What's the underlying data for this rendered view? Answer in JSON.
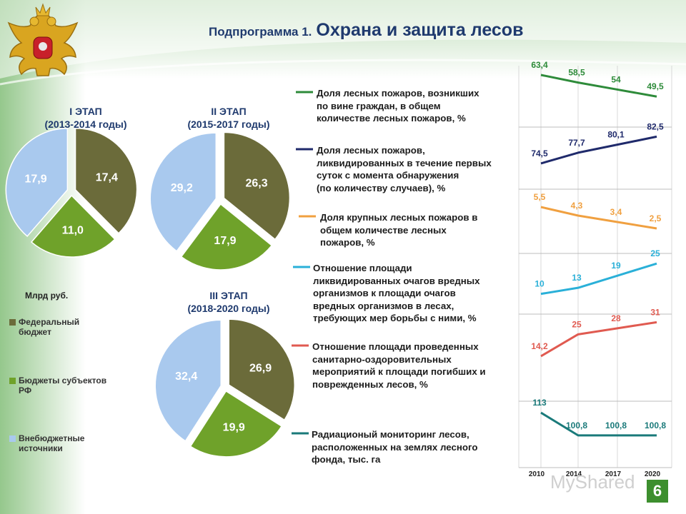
{
  "header": {
    "title_prefix": "Подпрограмма 1.",
    "title_main": "Охрана и защита лесов",
    "emblem_icon": "coat-of-arms-icon"
  },
  "colors": {
    "federal": "#6b6b3a",
    "regional": "#6fa22a",
    "extra": "#a9c9ee",
    "title": "#1f3a6e",
    "accent_green": "#3d8f2e"
  },
  "unit_label": "Млрд руб.",
  "legend": [
    {
      "label": "Федеральный бюджет",
      "color": "#6b6b3a"
    },
    {
      "label": "Бюджеты субъектов РФ",
      "color": "#6fa22a"
    },
    {
      "label": "Внебюджетные источники",
      "color": "#a9c9ee"
    }
  ],
  "page_number": "6",
  "watermark": "MyShared",
  "chart_data": [
    {
      "type": "pie",
      "title": "I ЭТАП",
      "subtitle": "(2013-2014 годы)",
      "categories": [
        "Федеральный бюджет",
        "Бюджеты субъектов РФ",
        "Внебюджетные источники"
      ],
      "values": [
        17.4,
        11.0,
        17.9
      ],
      "value_labels": [
        "17,4",
        "11,0",
        "17,9"
      ]
    },
    {
      "type": "pie",
      "title": "II ЭТАП",
      "subtitle": "(2015-2017 годы)",
      "categories": [
        "Федеральный бюджет",
        "Бюджеты субъектов РФ",
        "Внебюджетные источники"
      ],
      "values": [
        26.3,
        17.9,
        29.2
      ],
      "value_labels": [
        "26,3",
        "17,9",
        "29,2"
      ]
    },
    {
      "type": "pie",
      "title": "III ЭТАП",
      "subtitle": "(2018-2020 годы)",
      "categories": [
        "Федеральный бюджет",
        "Бюджеты субъектов РФ",
        "Внебюджетные источники"
      ],
      "values": [
        26.9,
        19.9,
        32.4
      ],
      "value_labels": [
        "26,9",
        "19,9",
        "32,4"
      ]
    },
    {
      "type": "line",
      "x": [
        "2010",
        "2014",
        "2017",
        "2020"
      ],
      "series": [
        {
          "name": "Доля лесных пожаров, возникших по вине граждан, в общем количестве лесных пожаров, %",
          "lines": [
            "Доля лесных пожаров, возникших",
            "по вине граждан, в общем",
            "количестве лесных пожаров, %"
          ],
          "values": [
            63.4,
            58.5,
            54,
            49.5
          ],
          "labels": [
            "63,4",
            "58,5",
            "54",
            "49,5"
          ],
          "color": "#2e8b3a"
        },
        {
          "name": "Доля лесных пожаров, ликвидированных в течение первых суток с момента обнаружения (по количеству случаев), %",
          "lines": [
            "Доля лесных пожаров,",
            "ликвидированных в течение первых",
            "суток с момента обнаружения",
            "(по количеству случаев), %"
          ],
          "values": [
            74.5,
            77.7,
            80.1,
            82.5
          ],
          "labels": [
            "74,5",
            "77,7",
            "80,1",
            "82,5"
          ],
          "color": "#1f2a6b"
        },
        {
          "name": "Доля крупных лесных пожаров в общем количестве лесных пожаров, %",
          "lines": [
            "Доля крупных лесных пожаров в",
            "общем количестве лесных",
            "пожаров, %"
          ],
          "values": [
            5.5,
            4.3,
            3.4,
            2.5
          ],
          "labels": [
            "5,5",
            "4,3",
            "3,4",
            "2,5"
          ],
          "color": "#f0a040"
        },
        {
          "name": "Отношение площади ликвидированных очагов вредных организмов к площади очагов вредных организмов в лесах, требующих мер борьбы с ними, %",
          "lines": [
            "Отношение площади",
            "ликвидированных очагов вредных",
            "организмов к площади очагов",
            "вредных организмов в лесах,",
            "требующих мер борьбы с ними, %"
          ],
          "values": [
            10,
            13,
            19,
            25
          ],
          "labels": [
            "10",
            "13",
            "19",
            "25"
          ],
          "color": "#2ab0d8"
        },
        {
          "name": "Отношение площади проведенных санитарно-оздоровительных мероприятий к площади погибших и поврежденных лесов, %",
          "lines": [
            "Отношение площади проведенных",
            "санитарно-оздоровительных",
            "мероприятий к площади погибших и",
            "поврежденных лесов, %"
          ],
          "values": [
            14.2,
            25,
            28,
            31
          ],
          "labels": [
            "14,2",
            "25",
            "28",
            "31"
          ],
          "color": "#e05a50"
        },
        {
          "name": "Радиационый мониторинг лесов, расположенных на землях лесного фонда, тыс. га",
          "lines": [
            "Радиационый мониторинг лесов,",
            "расположенных на землях лесного",
            "фонда, тыс. га"
          ],
          "values": [
            113,
            100.8,
            100.8,
            100.8
          ],
          "labels": [
            "113",
            "100,8",
            "100,8",
            "100,8"
          ],
          "color": "#1a7a7a"
        }
      ]
    }
  ]
}
